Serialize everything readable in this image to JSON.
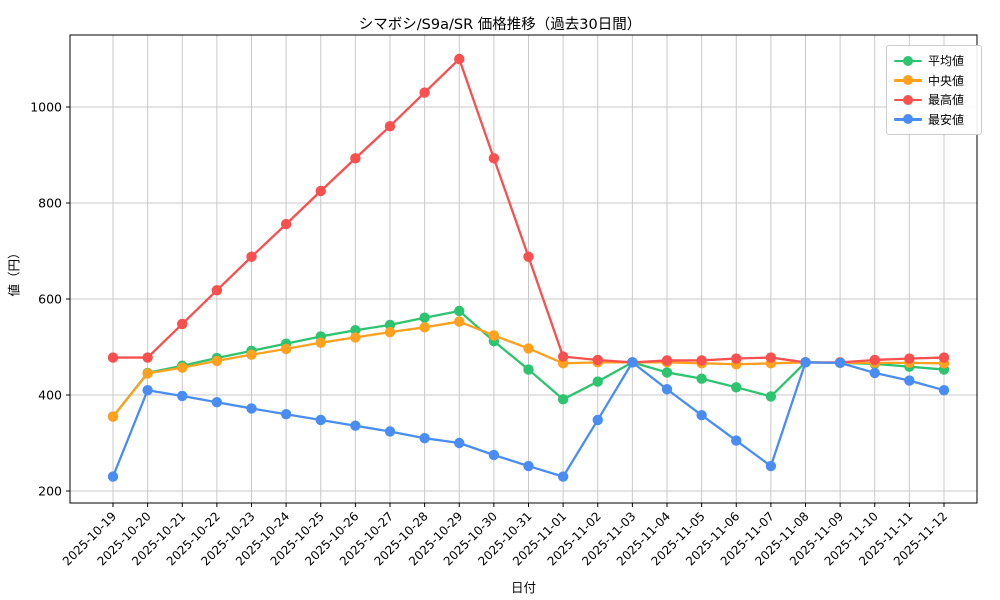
{
  "title": "シマボシ/S9a/SR 価格推移（過去30日間）",
  "xlabel": "日付",
  "ylabel": "値（円）",
  "legend": {
    "entries": [
      "平均値",
      "中央値",
      "最高値",
      "最安値"
    ]
  },
  "colors": {
    "average": "#2dc46f",
    "median": "#ffa01f",
    "max": "#f7504f",
    "min": "#4a8df2",
    "grid": "#c9c9c9",
    "axis": "#000000"
  },
  "chart_data": {
    "type": "line",
    "title": "シマボシ/S9a/SR 価格推移（過去30日間）",
    "xlabel": "日付",
    "ylabel": "値（円）",
    "x": [
      "2025-10-19",
      "2025-10-20",
      "2025-10-21",
      "2025-10-22",
      "2025-10-23",
      "2025-10-24",
      "2025-10-25",
      "2025-10-26",
      "2025-10-27",
      "2025-10-28",
      "2025-10-29",
      "2025-10-30",
      "2025-10-31",
      "2025-11-01",
      "2025-11-02",
      "2025-11-03",
      "2025-11-04",
      "2025-11-05",
      "2025-11-06",
      "2025-11-07",
      "2025-11-08",
      "2025-11-09",
      "2025-11-10",
      "2025-11-11",
      "2025-11-12"
    ],
    "series": [
      {
        "name": "平均値",
        "color": "#2dc46f",
        "values": [
          355,
          446,
          461,
          477,
          492,
          507,
          522,
          535,
          546,
          561,
          575,
          512,
          453,
          391,
          428,
          468,
          447,
          434,
          416,
          397,
          468,
          467,
          465,
          459,
          453
        ]
      },
      {
        "name": "中央値",
        "color": "#ffa01f",
        "values": [
          355,
          445,
          457,
          471,
          484,
          496,
          509,
          520,
          531,
          541,
          553,
          524,
          497,
          466,
          468,
          468,
          468,
          466,
          464,
          466,
          468,
          467,
          467,
          467,
          466
        ]
      },
      {
        "name": "最高値",
        "color": "#f7504f",
        "values": [
          478,
          478,
          548,
          618,
          688,
          756,
          825,
          893,
          960,
          1030,
          1100,
          893,
          688,
          480,
          473,
          468,
          472,
          472,
          476,
          478,
          468,
          468,
          473,
          476,
          478
        ]
      },
      {
        "name": "最安値",
        "color": "#4a8df2",
        "values": [
          230,
          410,
          398,
          385,
          372,
          360,
          348,
          336,
          324,
          310,
          300,
          275,
          252,
          230,
          348,
          468,
          412,
          358,
          305,
          252,
          468,
          467,
          446,
          430,
          410
        ]
      }
    ],
    "yticks": [
      200,
      400,
      600,
      800,
      1000
    ],
    "ylim": [
      175,
      1150
    ],
    "grid": true,
    "legend_position": "upper right"
  }
}
